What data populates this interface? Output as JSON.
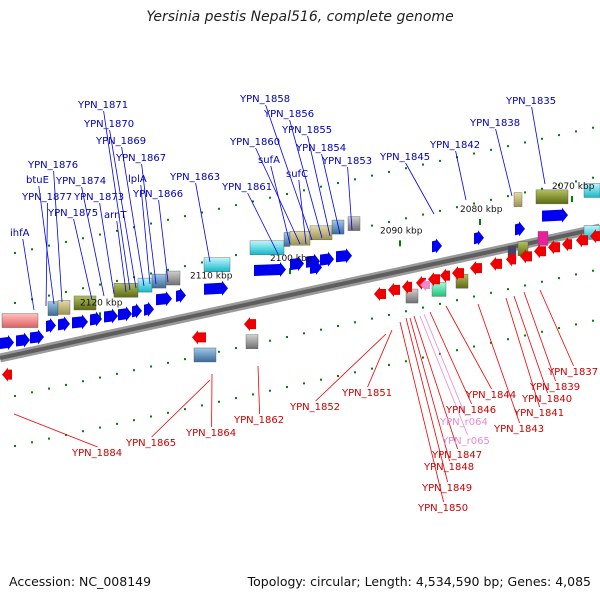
{
  "title": "Yersinia pestis Nepal516, complete genome",
  "accession_label": "Accession: NC_008149",
  "summary_label": "Topology: circular; Length: 4,534,590 bp; Genes: 4,085",
  "kbp_ticks": [
    "2070 kbp",
    "2080 kbp",
    "2090 kbp",
    "2100 kbp",
    "2110 kbp",
    "2120 kbp"
  ],
  "forward_genes": [
    "YPN_1835",
    "YPN_1838",
    "YPN_1842",
    "YPN_1845",
    "YPN_1853",
    "YPN_1854",
    "YPN_1855",
    "YPN_1856",
    "YPN_1858",
    "YPN_1860",
    "sufA",
    "sufC",
    "YPN_1861",
    "YPN_1863",
    "YPN_1866",
    "YPN_1867",
    "lplA",
    "YPN_1869",
    "YPN_1870",
    "YPN_1871",
    "arnT",
    "YPN_1873",
    "YPN_1874",
    "YPN_1875",
    "YPN_1876",
    "btuE",
    "YPN_1877",
    "ihfA"
  ],
  "reverse_genes": [
    "YPN_1837",
    "YPN_1839",
    "YPN_1840",
    "YPN_1841",
    "YPN_1843",
    "YPN_1844",
    "YPN_1846",
    "YPN_1847",
    "YPN_1848",
    "YPN_1849",
    "YPN_1850",
    "YPN_1851",
    "YPN_1852",
    "YPN_1862",
    "YPN_1864",
    "YPN_1865",
    "YPN_1884"
  ],
  "rna_genes": [
    "YPN_r064",
    "YPN_r065"
  ],
  "colors": {
    "forward_strand": "#0000ee",
    "reverse_strand": "#ee0000",
    "rna": "#ee88cc",
    "backbone": "#777777",
    "cog_teal": "#20c8d8",
    "cog_olive": "#7a8a20",
    "cog_khaki": "#b8b070",
    "cog_salmon": "#e87878",
    "cog_gray": "#888888",
    "cog_green": "#30d090",
    "cog_magenta": "#e8209a",
    "tick": "#008000"
  }
}
